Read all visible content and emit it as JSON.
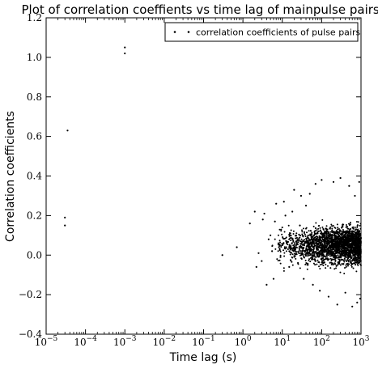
{
  "chart_data": {
    "type": "scatter",
    "title": "Plot of correlation coeffients vs time lag of mainpulse pairs.",
    "xlabel": "Time lag (s)",
    "ylabel": "Correlation coefficients",
    "xscale": "log",
    "xlim": [
      1e-05,
      1000
    ],
    "ylim": [
      -0.4,
      1.2
    ],
    "x_tick_labels": [
      {
        "base": "10",
        "exp": "−5",
        "value": 1e-05
      },
      {
        "base": "10",
        "exp": "−4",
        "value": 0.0001
      },
      {
        "base": "10",
        "exp": "−3",
        "value": 0.001
      },
      {
        "base": "10",
        "exp": "−2",
        "value": 0.01
      },
      {
        "base": "10",
        "exp": "−1",
        "value": 0.1
      },
      {
        "base": "10",
        "exp": "0",
        "value": 1
      },
      {
        "base": "10",
        "exp": "1",
        "value": 10
      },
      {
        "base": "10",
        "exp": "2",
        "value": 100
      },
      {
        "base": "10",
        "exp": "3",
        "value": 1000
      }
    ],
    "y_ticks": [
      -0.4,
      -0.2,
      0.0,
      0.2,
      0.4,
      0.6,
      0.8,
      1.0,
      1.2
    ],
    "y_tick_labels": [
      "−0.4",
      "−0.2",
      "0.0",
      "0.2",
      "0.4",
      "0.6",
      "0.8",
      "1.0",
      "1.2"
    ],
    "grid": false,
    "legend_position": "top-right",
    "series": [
      {
        "name": "correlation coefficients of pulse pairs",
        "marker": "point",
        "color": "#000000",
        "points": [
          [
            3e-05,
            0.19
          ],
          [
            3e-05,
            0.15
          ],
          [
            3.5e-05,
            0.63
          ],
          [
            0.001,
            1.05
          ],
          [
            0.001,
            1.02
          ],
          [
            0.3,
            0.0
          ],
          [
            0.7,
            0.04
          ],
          [
            1.5,
            0.16
          ],
          [
            2.0,
            0.22
          ],
          [
            2.2,
            -0.06
          ],
          [
            2.5,
            0.01
          ],
          [
            3.0,
            -0.03
          ],
          [
            3.2,
            0.18
          ],
          [
            3.5,
            0.21
          ],
          [
            4.0,
            -0.15
          ],
          [
            4.5,
            0.08
          ],
          [
            5.0,
            0.1
          ],
          [
            5.5,
            0.02
          ],
          [
            6.0,
            -0.12
          ],
          [
            6.5,
            0.17
          ],
          [
            7.0,
            0.26
          ],
          [
            8.0,
            0.06
          ],
          [
            9.0,
            -0.01
          ],
          [
            10.0,
            0.14
          ],
          [
            11.0,
            0.27
          ],
          [
            12.0,
            0.2
          ],
          [
            14.0,
            0.03
          ],
          [
            15.0,
            -0.06
          ],
          [
            16.0,
            0.11
          ],
          [
            18.0,
            0.22
          ],
          [
            20.0,
            0.33
          ],
          [
            22.0,
            0.04
          ],
          [
            25.0,
            -0.04
          ],
          [
            28.0,
            0.15
          ],
          [
            30.0,
            0.3
          ],
          [
            35.0,
            -0.12
          ],
          [
            40.0,
            0.25
          ],
          [
            45.0,
            0.0
          ],
          [
            50.0,
            0.31
          ],
          [
            60.0,
            -0.15
          ],
          [
            70.0,
            0.36
          ],
          [
            80.0,
            0.07
          ],
          [
            90.0,
            -0.18
          ],
          [
            100.0,
            0.38
          ],
          [
            120.0,
            0.12
          ],
          [
            150.0,
            -0.21
          ],
          [
            200.0,
            0.37
          ],
          [
            250.0,
            -0.25
          ],
          [
            300.0,
            0.39
          ],
          [
            400.0,
            -0.19
          ],
          [
            500.0,
            0.35
          ],
          [
            600.0,
            -0.26
          ],
          [
            700.0,
            0.3
          ],
          [
            800.0,
            -0.24
          ],
          [
            900.0,
            0.37
          ],
          [
            950.0,
            -0.22
          ]
        ]
      }
    ],
    "dense_cluster": {
      "description": "dense cloud of many points",
      "x_range": [
        5,
        1000
      ],
      "y_range": [
        -0.27,
        0.4
      ],
      "y_center": 0.05
    }
  }
}
